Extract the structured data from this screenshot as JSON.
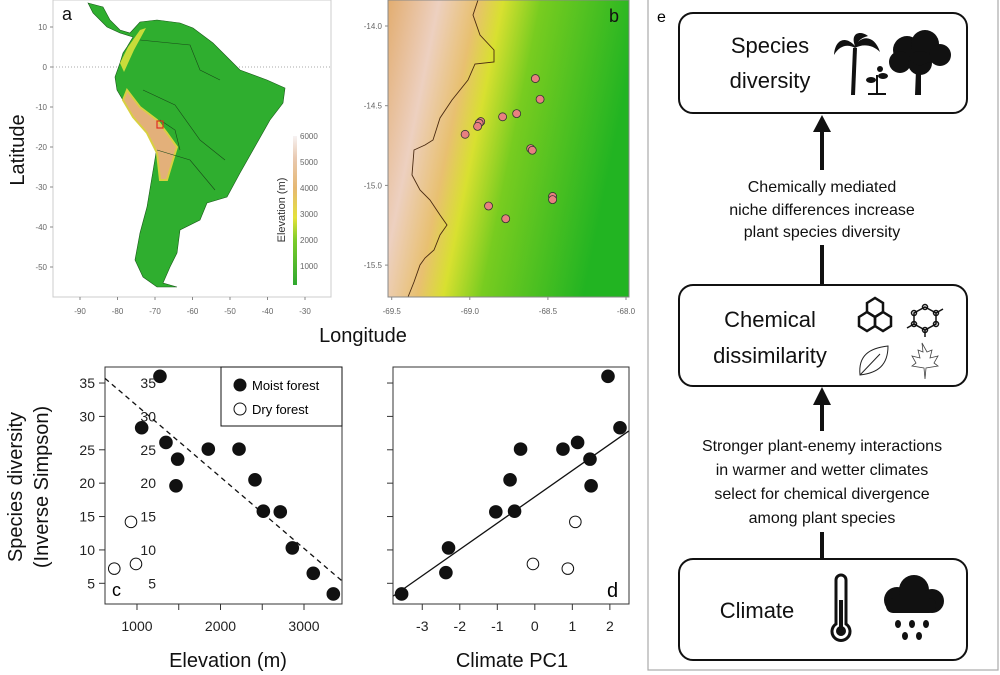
{
  "panel_labels": {
    "a": "a",
    "b": "b",
    "c": "c",
    "d": "d",
    "e": "e"
  },
  "maps": {
    "latitude_label": "Latitude",
    "longitude_label": "Longitude",
    "map_a": {
      "lat_ticks": [
        "10",
        "0",
        "-10",
        "-20",
        "-30",
        "-40",
        "-50"
      ],
      "lon_ticks": [
        "-90",
        "-80",
        "-70",
        "-60",
        "-50",
        "-40",
        "-30"
      ],
      "colorbar_title": "Elevation (m)",
      "colorbar_ticks": [
        "6000",
        "5000",
        "4000",
        "3000",
        "2000",
        "1000"
      ],
      "colors": {
        "lowland": "#2fae2f",
        "mid": "#e6e23a",
        "high": "#e3b07a",
        "peak": "#f4eaea",
        "study_box": "#e03020"
      }
    },
    "map_b": {
      "lat_ticks": [
        "-14.0",
        "-14.5",
        "-15.0",
        "-15.5"
      ],
      "lon_ticks": [
        "-69.5",
        "-69.0",
        "-68.5",
        "-68.0"
      ],
      "site_color": "#e88080",
      "sites": [
        {
          "lon": -68.58,
          "lat": -14.33
        },
        {
          "lon": -68.55,
          "lat": -14.46
        },
        {
          "lon": -68.7,
          "lat": -14.55
        },
        {
          "lon": -68.79,
          "lat": -14.57
        },
        {
          "lon": -68.93,
          "lat": -14.6
        },
        {
          "lon": -68.94,
          "lat": -14.61
        },
        {
          "lon": -68.95,
          "lat": -14.63
        },
        {
          "lon": -69.03,
          "lat": -14.68
        },
        {
          "lon": -68.61,
          "lat": -14.77
        },
        {
          "lon": -68.6,
          "lat": -14.78
        },
        {
          "lon": -68.47,
          "lat": -15.07
        },
        {
          "lon": -68.47,
          "lat": -15.09
        },
        {
          "lon": -68.88,
          "lat": -15.13
        },
        {
          "lon": -68.77,
          "lat": -15.21
        }
      ]
    }
  },
  "chart_data": [
    {
      "type": "scatter",
      "panel": "c",
      "xlabel": "Elevation (m)",
      "ylabel": "Species diversity",
      "ylabel2": "(Inverse Simpson)",
      "xlim": [
        617,
        3455
      ],
      "ylim": [
        1.9,
        37.4
      ],
      "xticks": [
        1000,
        1500,
        2000,
        2500,
        3000
      ],
      "xtick_labels": [
        "1000",
        "",
        "2000",
        "",
        "3000"
      ],
      "yticks": [
        5,
        10,
        15,
        20,
        25,
        30,
        35
      ],
      "ytick_labels": [
        "5",
        "10",
        "15",
        "20",
        "25",
        "30",
        "35"
      ],
      "legend": {
        "position": "top-right",
        "entries": [
          "Moist forest",
          "Dry forest"
        ]
      },
      "series": [
        {
          "name": "Moist forest",
          "marker": "filled",
          "x": [
            1275,
            1056,
            1347,
            1487,
            1467,
            1854,
            2222,
            2413,
            2513,
            2716,
            2860,
            3111,
            3351
          ],
          "y": [
            36.0,
            28.3,
            26.1,
            23.6,
            19.6,
            25.1,
            25.1,
            20.5,
            15.8,
            15.7,
            10.3,
            6.5,
            3.4
          ]
        },
        {
          "name": "Dry forest",
          "marker": "open",
          "x": [
            928,
            988,
            728
          ],
          "y": [
            14.2,
            7.9,
            7.2
          ]
        }
      ],
      "fit_line": {
        "style": "dashed",
        "x": [
          617,
          3451
        ],
        "y": [
          35.7,
          5.4
        ]
      }
    },
    {
      "type": "scatter",
      "panel": "d",
      "xlabel": "Climate PC1",
      "xlim": [
        -3.78,
        2.51
      ],
      "ylim": [
        1.9,
        37.4
      ],
      "xticks": [
        -3,
        -2,
        -1,
        0,
        1,
        2
      ],
      "xtick_labels": [
        "-3",
        "-2",
        "-1",
        "0",
        "1",
        "2"
      ],
      "yticks": [
        5,
        10,
        15,
        20,
        25,
        30,
        35
      ],
      "ytick_labels": [
        "5",
        "10",
        "15",
        "20",
        "25",
        "30",
        "35"
      ],
      "series": [
        {
          "name": "Moist forest",
          "marker": "filled",
          "x": [
            -3.55,
            -2.37,
            -2.3,
            -1.04,
            -0.54,
            -0.66,
            -0.38,
            0.75,
            1.14,
            1.47,
            1.5,
            1.95,
            2.27
          ],
          "y": [
            3.4,
            6.6,
            10.3,
            15.7,
            15.8,
            20.5,
            25.1,
            25.1,
            26.1,
            23.6,
            19.6,
            36.0,
            28.3
          ]
        },
        {
          "name": "Dry forest",
          "marker": "open",
          "x": [
            -0.05,
            0.88,
            1.08
          ],
          "y": [
            7.9,
            7.2,
            14.2
          ]
        }
      ],
      "fit_line": {
        "style": "solid",
        "x": [
          -3.77,
          2.5
        ],
        "y": [
          3.1,
          27.8
        ]
      }
    }
  ],
  "diagram": {
    "boxes": {
      "species_diversity": [
        "Species",
        "diversity"
      ],
      "chemical_dissimilarity": [
        "Chemical",
        "dissimilarity"
      ],
      "climate": "Climate"
    },
    "upper_arrow_text": [
      "Chemically mediated",
      "niche differences increase",
      "plant species diversity"
    ],
    "lower_arrow_text": [
      "Stronger plant-enemy interactions",
      "in warmer and wetter climates",
      "select for chemical divergence",
      "among plant species"
    ],
    "icons": [
      "palm-tree-icon",
      "seedling-icon",
      "tree-icon",
      "polycyclic-molecule-icon",
      "ring-molecule-icon",
      "leaf-icon",
      "maple-leaf-icon",
      "thermometer-icon",
      "rain-cloud-icon"
    ]
  }
}
